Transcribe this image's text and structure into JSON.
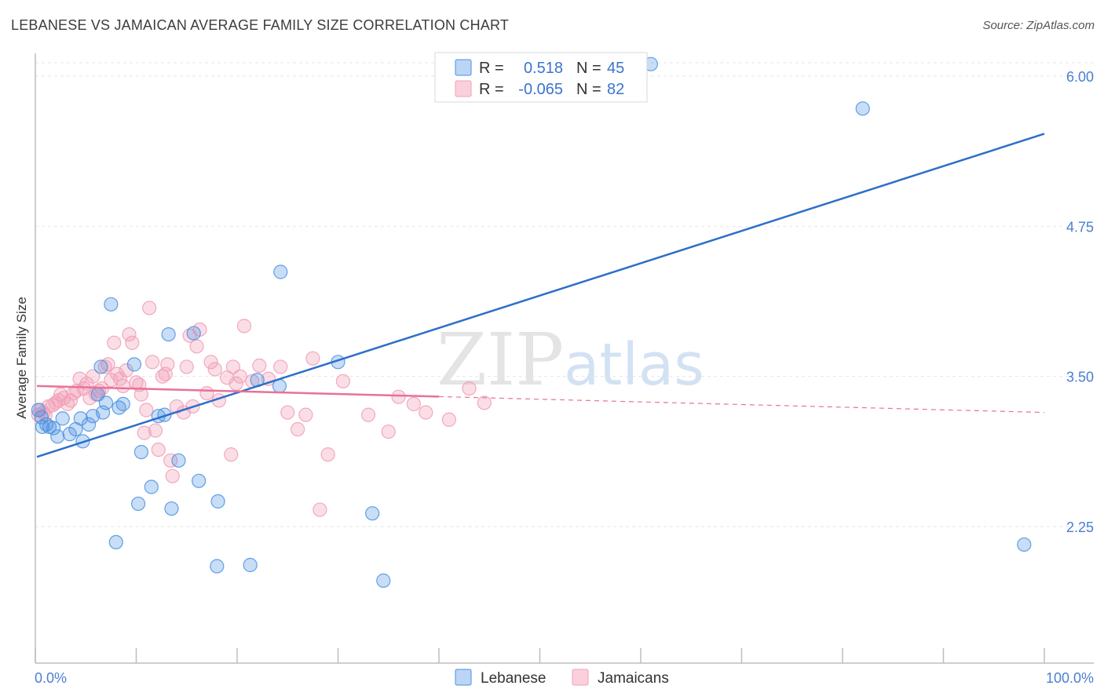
{
  "title": "LEBANESE VS JAMAICAN AVERAGE FAMILY SIZE CORRELATION CHART",
  "source": "Source: ZipAtlas.com",
  "watermark": {
    "zip": "ZIP",
    "atlas": "atlas"
  },
  "colors": {
    "lebanese": "#4a90e2",
    "lebanese_line": "#2c6fca",
    "jamaicans": "#f2a0b8",
    "jamaicans_line": "#e8719a",
    "tick": "#4a7fd0",
    "grid": "#e6e6e6"
  },
  "legend": {
    "row1": {
      "r_label": "R =",
      "r_value": "0.518",
      "n_label": "N =",
      "n_value": "45"
    },
    "row2": {
      "r_label": "R =",
      "r_value": "-0.065",
      "n_label": "N =",
      "n_value": "82"
    }
  },
  "bottom_legend": {
    "lebanese": "Lebanese",
    "jamaicans": "Jamaicans"
  },
  "chart_data": {
    "type": "scatter",
    "title": "LEBANESE VS JAMAICAN AVERAGE FAMILY SIZE CORRELATION CHART",
    "xlabel": "",
    "ylabel": "Average Family Size",
    "xlim": [
      0,
      100
    ],
    "ylim": [
      1.0,
      6.2
    ],
    "x_tick_labels": [
      "0.0%",
      "100.0%"
    ],
    "y_ticks": [
      2.25,
      3.5,
      4.75,
      6.0
    ],
    "y_tick_labels": [
      "2.25",
      "3.50",
      "4.75",
      "6.00"
    ],
    "grid": true,
    "series": [
      {
        "name": "Lebanese",
        "r": 0.518,
        "n": 45,
        "trend": {
          "x0": 0,
          "y0": 2.83,
          "x1": 100,
          "y1": 5.52
        },
        "points": [
          [
            0.3,
            3.22
          ],
          [
            0.6,
            3.16
          ],
          [
            0.7,
            3.08
          ],
          [
            1.1,
            3.1
          ],
          [
            1.4,
            3.08
          ],
          [
            1.8,
            3.07
          ],
          [
            2.2,
            3.0
          ],
          [
            2.7,
            3.15
          ],
          [
            3.4,
            3.02
          ],
          [
            4.0,
            3.06
          ],
          [
            4.5,
            3.15
          ],
          [
            4.7,
            2.96
          ],
          [
            5.3,
            3.1
          ],
          [
            5.7,
            3.17
          ],
          [
            6.2,
            3.35
          ],
          [
            6.5,
            3.58
          ],
          [
            6.7,
            3.2
          ],
          [
            7.0,
            3.28
          ],
          [
            7.5,
            4.1
          ],
          [
            8.0,
            2.12
          ],
          [
            8.3,
            3.24
          ],
          [
            8.7,
            3.27
          ],
          [
            9.8,
            3.6
          ],
          [
            10.2,
            2.44
          ],
          [
            10.5,
            2.87
          ],
          [
            11.5,
            2.58
          ],
          [
            12.2,
            3.17
          ],
          [
            12.8,
            3.18
          ],
          [
            13.2,
            3.85
          ],
          [
            13.5,
            2.4
          ],
          [
            14.2,
            2.8
          ],
          [
            15.7,
            3.86
          ],
          [
            16.2,
            2.63
          ],
          [
            18.0,
            1.92
          ],
          [
            18.1,
            2.46
          ],
          [
            21.3,
            1.93
          ],
          [
            22.0,
            3.47
          ],
          [
            24.2,
            3.42
          ],
          [
            24.3,
            4.37
          ],
          [
            30.0,
            3.62
          ],
          [
            34.5,
            1.8
          ],
          [
            33.4,
            2.36
          ],
          [
            61.0,
            6.1
          ],
          [
            82.0,
            5.73
          ],
          [
            98.0,
            2.1
          ]
        ]
      },
      {
        "name": "Jamaicans",
        "r": -0.065,
        "n": 82,
        "trend": {
          "x0": 0,
          "y0": 3.42,
          "x1": 100,
          "y1": 3.2,
          "solid_until": 40
        },
        "points": [
          [
            0.3,
            3.18
          ],
          [
            0.5,
            3.22
          ],
          [
            0.8,
            3.2
          ],
          [
            1.0,
            3.18
          ],
          [
            1.3,
            3.25
          ],
          [
            1.7,
            3.26
          ],
          [
            2.0,
            3.28
          ],
          [
            2.3,
            3.3
          ],
          [
            2.5,
            3.35
          ],
          [
            2.8,
            3.32
          ],
          [
            3.2,
            3.27
          ],
          [
            3.5,
            3.3
          ],
          [
            3.8,
            3.36
          ],
          [
            4.1,
            3.38
          ],
          [
            4.4,
            3.48
          ],
          [
            4.8,
            3.4
          ],
          [
            5.1,
            3.44
          ],
          [
            5.4,
            3.32
          ],
          [
            5.7,
            3.5
          ],
          [
            6.0,
            3.35
          ],
          [
            6.3,
            3.38
          ],
          [
            6.6,
            3.4
          ],
          [
            6.9,
            3.58
          ],
          [
            7.2,
            3.6
          ],
          [
            7.5,
            3.47
          ],
          [
            7.8,
            3.78
          ],
          [
            8.1,
            3.52
          ],
          [
            8.4,
            3.48
          ],
          [
            8.7,
            3.42
          ],
          [
            9.0,
            3.55
          ],
          [
            9.3,
            3.85
          ],
          [
            9.6,
            3.78
          ],
          [
            10.0,
            3.45
          ],
          [
            10.3,
            3.43
          ],
          [
            10.5,
            3.35
          ],
          [
            10.8,
            3.03
          ],
          [
            11.0,
            3.22
          ],
          [
            11.3,
            4.07
          ],
          [
            11.6,
            3.62
          ],
          [
            11.9,
            3.05
          ],
          [
            12.2,
            2.89
          ],
          [
            12.6,
            3.5
          ],
          [
            12.9,
            3.52
          ],
          [
            13.1,
            3.6
          ],
          [
            13.4,
            2.8
          ],
          [
            13.6,
            2.67
          ],
          [
            14.0,
            3.25
          ],
          [
            14.7,
            3.2
          ],
          [
            15.0,
            3.58
          ],
          [
            15.3,
            3.84
          ],
          [
            15.6,
            3.25
          ],
          [
            16.0,
            3.75
          ],
          [
            16.3,
            3.89
          ],
          [
            17.0,
            3.36
          ],
          [
            17.4,
            3.62
          ],
          [
            17.8,
            3.56
          ],
          [
            18.2,
            3.3
          ],
          [
            19.0,
            3.49
          ],
          [
            19.4,
            2.85
          ],
          [
            19.6,
            3.58
          ],
          [
            19.9,
            3.44
          ],
          [
            20.3,
            3.5
          ],
          [
            20.7,
            3.92
          ],
          [
            21.5,
            3.46
          ],
          [
            22.2,
            3.59
          ],
          [
            23.1,
            3.48
          ],
          [
            24.3,
            3.58
          ],
          [
            25.0,
            3.2
          ],
          [
            26.0,
            3.06
          ],
          [
            26.8,
            3.18
          ],
          [
            27.5,
            3.65
          ],
          [
            28.2,
            2.39
          ],
          [
            29.0,
            2.85
          ],
          [
            30.5,
            3.46
          ],
          [
            33.0,
            3.18
          ],
          [
            35.0,
            3.04
          ],
          [
            36.0,
            3.33
          ],
          [
            37.5,
            3.27
          ],
          [
            38.7,
            3.2
          ],
          [
            41.0,
            3.14
          ],
          [
            43.0,
            3.4
          ],
          [
            44.5,
            3.28
          ]
        ]
      }
    ]
  }
}
